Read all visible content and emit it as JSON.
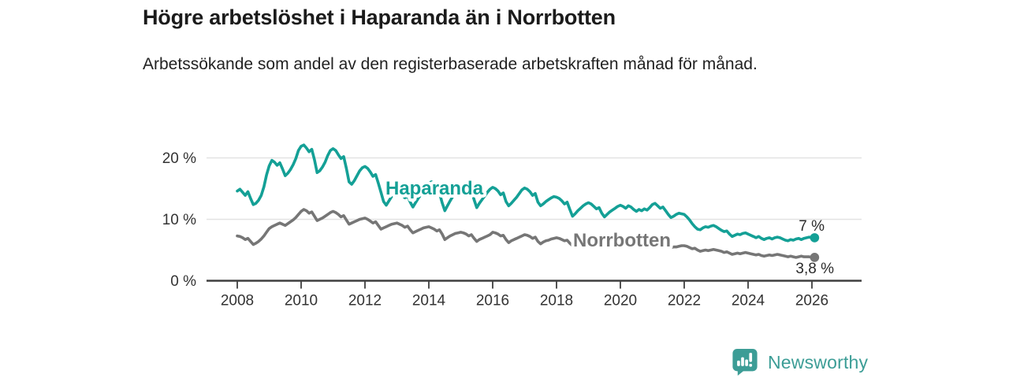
{
  "chart_data": {
    "type": "line",
    "title": "Högre arbetslöshet i Haparanda än i Norrbotten",
    "subtitle": "Arbetssökande som andel av den registerbaserade arbetskraften månad för månad.",
    "grid": "horizontal",
    "x": {
      "start_year": 2008,
      "start_month": 1,
      "frequency": "monthly",
      "tick_years": [
        2008,
        2010,
        2012,
        2014,
        2016,
        2018,
        2020,
        2022,
        2024,
        2026
      ]
    },
    "y": {
      "unit": "%",
      "lim": [
        0,
        23
      ],
      "ticks": [
        {
          "value": 0,
          "label": "0 %"
        },
        {
          "value": 10,
          "label": "10 %"
        },
        {
          "value": 20,
          "label": "20 %"
        }
      ]
    },
    "series": [
      {
        "name": "Haparanda",
        "color": "#14A096",
        "end_label": "7 %",
        "values": [
          14.6,
          14.9,
          14.4,
          13.9,
          14.5,
          13.4,
          12.4,
          12.6,
          13.1,
          13.9,
          15.3,
          17.2,
          18.7,
          19.6,
          19.3,
          18.8,
          19.2,
          18.2,
          17.1,
          17.5,
          18.1,
          18.9,
          19.9,
          21.2,
          21.9,
          22.1,
          21.6,
          21.0,
          21.4,
          19.7,
          17.6,
          17.9,
          18.5,
          19.3,
          20.4,
          21.2,
          21.5,
          21.2,
          20.5,
          19.9,
          20.2,
          18.3,
          16.1,
          15.7,
          16.3,
          17.1,
          17.9,
          18.4,
          18.6,
          18.3,
          17.7,
          17.0,
          17.3,
          15.9,
          14.4,
          12.9,
          12.3,
          13.0,
          13.7,
          14.2,
          14.5,
          14.3,
          13.9,
          13.5,
          13.8,
          12.8,
          12.0,
          12.7,
          13.4,
          14.0,
          14.7,
          15.4,
          15.9,
          16.1,
          15.6,
          14.9,
          14.3,
          12.7,
          11.4,
          12.2,
          13.0,
          13.7,
          14.4,
          15.0,
          15.4,
          15.6,
          15.1,
          14.5,
          14.8,
          13.2,
          11.9,
          12.6,
          13.2,
          13.8,
          14.4,
          14.9,
          15.2,
          15.0,
          14.6,
          14.0,
          14.3,
          12.9,
          12.2,
          12.6,
          13.1,
          13.6,
          14.2,
          14.8,
          15.1,
          14.9,
          14.5,
          13.9,
          14.2,
          12.8,
          12.2,
          12.5,
          12.9,
          13.2,
          13.5,
          13.7,
          13.6,
          13.4,
          13.0,
          12.5,
          12.8,
          11.6,
          10.5,
          10.9,
          11.4,
          11.8,
          12.2,
          12.5,
          12.7,
          12.5,
          12.1,
          11.7,
          11.9,
          11.0,
          10.4,
          10.8,
          11.2,
          11.5,
          11.8,
          12.1,
          12.3,
          12.1,
          11.8,
          12.2,
          12.0,
          11.6,
          11.3,
          11.6,
          11.4,
          11.7,
          11.5,
          11.9,
          12.4,
          12.6,
          12.2,
          11.8,
          12.0,
          11.4,
          10.8,
          10.3,
          10.5,
          10.8,
          11.0,
          10.9,
          10.8,
          10.4,
          9.9,
          9.3,
          8.8,
          8.4,
          8.3,
          8.6,
          8.8,
          8.7,
          8.9,
          9.0,
          8.8,
          8.5,
          8.2,
          8.0,
          8.1,
          7.6,
          7.2,
          7.4,
          7.6,
          7.5,
          7.7,
          7.8,
          7.6,
          7.4,
          7.2,
          7.0,
          7.2,
          6.9,
          6.7,
          6.9,
          7.0,
          6.8,
          7.0,
          7.1,
          7.0,
          6.8,
          6.6,
          6.5,
          6.7,
          6.6,
          6.8,
          6.9,
          6.7,
          6.9,
          7.0,
          7.1,
          7.0,
          7.0
        ]
      },
      {
        "name": "Norrbotten",
        "color": "#767676",
        "end_label": "3,8 %",
        "values": [
          7.3,
          7.2,
          7.0,
          6.7,
          6.9,
          6.4,
          5.9,
          6.1,
          6.4,
          6.8,
          7.3,
          7.9,
          8.5,
          8.8,
          9.0,
          9.2,
          9.4,
          9.2,
          9.0,
          9.3,
          9.6,
          9.9,
          10.3,
          10.8,
          11.3,
          11.6,
          11.4,
          11.0,
          11.2,
          10.5,
          9.8,
          10.0,
          10.2,
          10.5,
          10.8,
          11.1,
          11.3,
          11.1,
          10.8,
          10.4,
          10.6,
          9.9,
          9.2,
          9.4,
          9.6,
          9.8,
          10.0,
          10.1,
          10.2,
          10.0,
          9.7,
          9.4,
          9.6,
          9.0,
          8.4,
          8.6,
          8.8,
          9.0,
          9.2,
          9.3,
          9.4,
          9.2,
          9.0,
          8.7,
          8.9,
          8.3,
          7.8,
          8.0,
          8.2,
          8.4,
          8.6,
          8.7,
          8.8,
          8.6,
          8.4,
          8.1,
          8.3,
          7.6,
          6.7,
          7.0,
          7.3,
          7.5,
          7.7,
          7.8,
          7.9,
          7.8,
          7.6,
          7.3,
          7.5,
          6.9,
          6.4,
          6.7,
          6.9,
          7.1,
          7.3,
          7.5,
          7.9,
          7.8,
          7.6,
          7.3,
          7.4,
          6.7,
          6.2,
          6.5,
          6.7,
          6.9,
          7.1,
          7.3,
          7.5,
          7.4,
          7.2,
          6.9,
          7.1,
          6.4,
          6.0,
          6.3,
          6.5,
          6.6,
          6.8,
          6.9,
          7.0,
          6.9,
          6.7,
          6.5,
          6.6,
          6.1,
          5.7,
          5.9,
          6.1,
          6.2,
          6.4,
          6.5,
          6.6,
          6.5,
          6.3,
          6.1,
          6.2,
          5.8,
          5.5,
          5.7,
          5.8,
          5.9,
          6.0,
          6.1,
          6.3,
          6.2,
          6.4,
          6.6,
          6.7,
          6.5,
          6.3,
          6.4,
          6.2,
          6.1,
          6.0,
          6.1,
          6.2,
          6.1,
          6.0,
          5.8,
          5.9,
          5.6,
          5.3,
          5.4,
          5.5,
          5.5,
          5.6,
          5.7,
          5.7,
          5.6,
          5.4,
          5.2,
          5.3,
          5.0,
          4.8,
          4.9,
          5.0,
          4.9,
          5.0,
          5.1,
          5.0,
          4.9,
          4.8,
          4.6,
          4.7,
          4.5,
          4.3,
          4.4,
          4.5,
          4.4,
          4.5,
          4.6,
          4.5,
          4.4,
          4.3,
          4.2,
          4.3,
          4.1,
          4.0,
          4.1,
          4.2,
          4.1,
          4.2,
          4.3,
          4.2,
          4.1,
          4.0,
          3.9,
          4.0,
          3.9,
          3.8,
          3.9,
          4.0,
          3.9,
          3.9,
          3.9,
          3.8,
          3.8
        ]
      }
    ]
  },
  "footer": {
    "brand": "Newsworthy",
    "brand_color": "#3C9D96",
    "logo_icon": "bar-chart-speech-bubble-icon"
  }
}
